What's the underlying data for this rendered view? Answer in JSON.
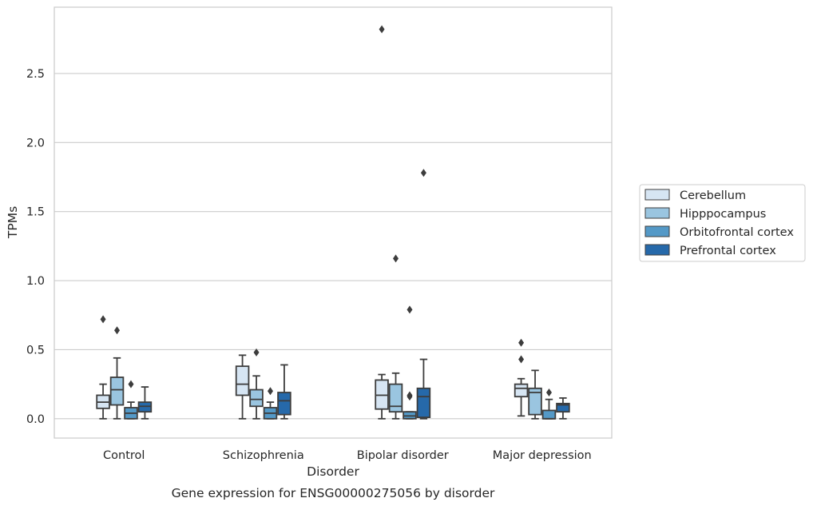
{
  "chart_data": {
    "type": "box",
    "xlabel": "Disorder",
    "ylabel": "TPMs",
    "caption": "Gene expression for ENSG00000275056 by disorder",
    "ylim": [
      -0.14,
      2.98
    ],
    "yticks": [
      0.0,
      0.5,
      1.0,
      1.5,
      2.0,
      2.5
    ],
    "ytick_labels": [
      "0.0",
      "0.5",
      "1.0",
      "1.5",
      "2.0",
      "2.5"
    ],
    "grid": "horizontal",
    "legend_position": "right",
    "categories": [
      "Control",
      "Schizophrenia",
      "Bipolar disorder",
      "Major depression"
    ],
    "series": [
      {
        "name": "Cerebellum",
        "color": "#d6e5f3",
        "boxes": [
          {
            "whislo": 0.0,
            "q1": 0.075,
            "med": 0.12,
            "q3": 0.17,
            "whishi": 0.25,
            "fliers": [
              0.72
            ]
          },
          {
            "whislo": 0.0,
            "q1": 0.17,
            "med": 0.25,
            "q3": 0.38,
            "whishi": 0.46,
            "fliers": []
          },
          {
            "whislo": 0.0,
            "q1": 0.07,
            "med": 0.17,
            "q3": 0.28,
            "whishi": 0.32,
            "fliers": [
              2.82
            ]
          },
          {
            "whislo": 0.02,
            "q1": 0.16,
            "med": 0.22,
            "q3": 0.25,
            "whishi": 0.29,
            "fliers": [
              0.43,
              0.55
            ]
          }
        ]
      },
      {
        "name": "Hipppocampus",
        "color": "#9ac5e0",
        "boxes": [
          {
            "whislo": 0.0,
            "q1": 0.1,
            "med": 0.21,
            "q3": 0.3,
            "whishi": 0.44,
            "fliers": [
              0.64
            ]
          },
          {
            "whislo": 0.0,
            "q1": 0.09,
            "med": 0.14,
            "q3": 0.21,
            "whishi": 0.31,
            "fliers": [
              0.48
            ]
          },
          {
            "whislo": 0.0,
            "q1": 0.05,
            "med": 0.09,
            "q3": 0.25,
            "whishi": 0.33,
            "fliers": [
              1.16
            ]
          },
          {
            "whislo": 0.0,
            "q1": 0.03,
            "med": 0.19,
            "q3": 0.22,
            "whishi": 0.35,
            "fliers": []
          }
        ]
      },
      {
        "name": "Orbitofrontal cortex",
        "color": "#5499c7",
        "boxes": [
          {
            "whislo": 0.0,
            "q1": 0.0,
            "med": 0.04,
            "q3": 0.08,
            "whishi": 0.12,
            "fliers": [
              0.25
            ]
          },
          {
            "whislo": 0.0,
            "q1": 0.0,
            "med": 0.04,
            "q3": 0.08,
            "whishi": 0.12,
            "fliers": [
              0.2
            ]
          },
          {
            "whislo": 0.0,
            "q1": 0.0,
            "med": 0.02,
            "q3": 0.05,
            "whishi": 0.05,
            "fliers": [
              0.16,
              0.17,
              0.79
            ]
          },
          {
            "whislo": 0.0,
            "q1": 0.0,
            "med": 0.0,
            "q3": 0.06,
            "whishi": 0.14,
            "fliers": [
              0.19
            ]
          }
        ]
      },
      {
        "name": "Prefrontal cortex",
        "color": "#2669aa",
        "boxes": [
          {
            "whislo": 0.0,
            "q1": 0.05,
            "med": 0.09,
            "q3": 0.12,
            "whishi": 0.23,
            "fliers": []
          },
          {
            "whislo": 0.0,
            "q1": 0.03,
            "med": 0.13,
            "q3": 0.19,
            "whishi": 0.39,
            "fliers": []
          },
          {
            "whislo": 0.0,
            "q1": 0.01,
            "med": 0.16,
            "q3": 0.22,
            "whishi": 0.43,
            "fliers": [
              1.78
            ]
          },
          {
            "whislo": 0.0,
            "q1": 0.05,
            "med": 0.1,
            "q3": 0.11,
            "whishi": 0.15,
            "fliers": []
          }
        ]
      }
    ]
  }
}
